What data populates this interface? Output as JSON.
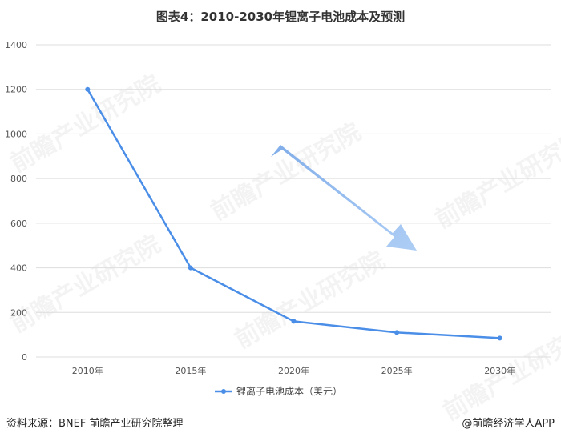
{
  "title": "图表4：2010-2030年锂离子电池成本及预测",
  "watermark_text": "前瞻产业研究院",
  "footer": {
    "source": "资料来源：BNEF 前瞻产业研究院整理",
    "brand": "@前瞻经济学人APP"
  },
  "colors": {
    "line": "#4a8ee8",
    "arrow": "#8db8ee",
    "grid": "#dddddd",
    "text": "#555555"
  },
  "chart_data": {
    "type": "line",
    "categories": [
      "2010年",
      "2015年",
      "2020年",
      "2025年",
      "2030年"
    ],
    "series": [
      {
        "name": "锂离子电池成本（美元）",
        "values": [
          1200,
          400,
          160,
          110,
          85
        ]
      }
    ],
    "title": "图表4：2010-2030年锂离子电池成本及预测",
    "xlabel": "",
    "ylabel": "",
    "ylim": [
      0,
      1400
    ],
    "yticks": [
      0,
      200,
      400,
      600,
      800,
      1000,
      1200,
      1400
    ],
    "grid": true,
    "legend": "bottom-center",
    "annotation": "downward trend arrow"
  }
}
